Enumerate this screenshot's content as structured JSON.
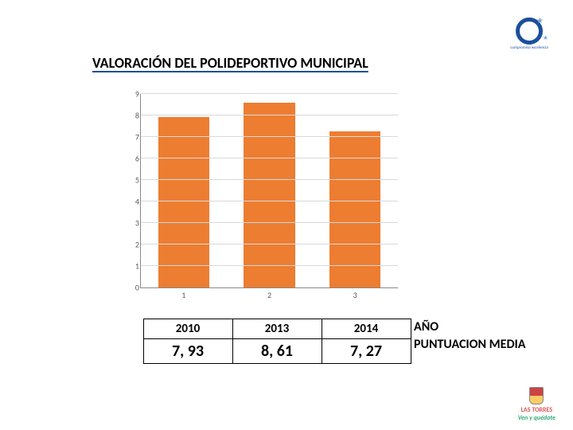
{
  "title": "VALORACIÓN DEL POLIDEPORTIVO MUNICIPAL",
  "chart": {
    "type": "bar",
    "categories": [
      "1",
      "2",
      "3"
    ],
    "years": [
      "2010",
      "2013",
      "2014"
    ],
    "values": [
      7.93,
      8.61,
      7.27
    ],
    "value_labels": [
      "7, 93",
      "8, 61",
      "7, 27"
    ],
    "bar_color": "#ed7d31",
    "ylim": [
      0,
      9
    ],
    "ytick_step": 1,
    "grid_color": "#d9d9d9",
    "axis_color": "#888888",
    "tick_fontsize": 10,
    "bar_width_ratio": 0.6,
    "background_color": "#ffffff"
  },
  "side": {
    "line1": "AÑO",
    "line2": "PUNTUACION MEDIA"
  },
  "logos": {
    "top_alt": "compromiso excelencia",
    "bottom_line1": "LAS TORRES",
    "bottom_line2": "Ven y quédate"
  }
}
